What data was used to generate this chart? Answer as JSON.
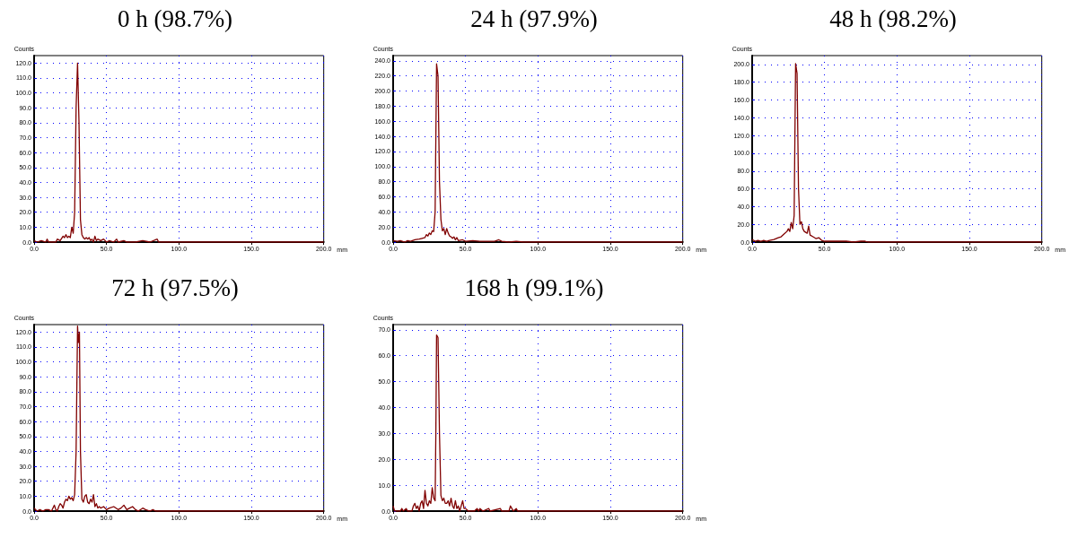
{
  "chart_data": [
    {
      "type": "line",
      "title": "0 h (98.7%)",
      "xlabel": "mm",
      "ylabel": "Counts",
      "grid": true,
      "marker": "none",
      "line_style": "solid",
      "xlim": [
        0,
        200
      ],
      "ylim": [
        0,
        125
      ],
      "xticks": [
        {
          "value": 0,
          "label": "0.0"
        },
        {
          "value": 50,
          "label": "50.0"
        },
        {
          "value": 100,
          "label": "100.0"
        },
        {
          "value": 150,
          "label": "150.0"
        },
        {
          "value": 200,
          "label": "200.0"
        }
      ],
      "yticks": [
        {
          "value": 0,
          "label": "0.0"
        },
        {
          "value": 10,
          "label": "10.0"
        },
        {
          "value": 20,
          "label": "20.0"
        },
        {
          "value": 30,
          "label": "30.0"
        },
        {
          "value": 40,
          "label": "40.0"
        },
        {
          "value": 50,
          "label": "50.0"
        },
        {
          "value": 60,
          "label": "60.0"
        },
        {
          "value": 70,
          "label": "70.0"
        },
        {
          "value": 80,
          "label": "80.0"
        },
        {
          "value": 90,
          "label": "90.0"
        },
        {
          "value": 100,
          "label": "100.0"
        },
        {
          "value": 110,
          "label": "110.0"
        },
        {
          "value": 120,
          "label": "120.0"
        }
      ],
      "series": [
        {
          "color": "#800000",
          "x": [
            0,
            2,
            5,
            8,
            9,
            10,
            15,
            16,
            18,
            20,
            21,
            22,
            23,
            24,
            25,
            26,
            27,
            28,
            29,
            30,
            31,
            32,
            33,
            34,
            35,
            36,
            37,
            38,
            39,
            40,
            41,
            42,
            43,
            44,
            46,
            48,
            50,
            52,
            55,
            57,
            58,
            62,
            64,
            70,
            75,
            80,
            85,
            86,
            90,
            200
          ],
          "values": [
            1,
            0,
            1,
            0,
            2,
            0,
            0,
            2,
            1,
            4,
            3,
            5,
            3,
            4,
            3,
            10,
            6,
            20,
            90,
            120,
            80,
            15,
            5,
            3,
            2,
            3,
            2,
            3,
            1,
            2,
            0,
            4,
            1,
            2,
            1,
            2,
            0,
            1,
            0,
            2,
            0,
            1,
            0,
            0,
            1,
            0,
            2,
            0,
            0,
            0
          ]
        }
      ]
    },
    {
      "type": "line",
      "title": "24 h (97.9%)",
      "xlabel": "mm",
      "ylabel": "Counts",
      "grid": true,
      "marker": "none",
      "line_style": "solid",
      "xlim": [
        0,
        200
      ],
      "ylim": [
        0,
        247
      ],
      "xticks": [
        {
          "value": 0,
          "label": "0.0"
        },
        {
          "value": 50,
          "label": "50.0"
        },
        {
          "value": 100,
          "label": "100.0"
        },
        {
          "value": 150,
          "label": "150.0"
        },
        {
          "value": 200,
          "label": "200.0"
        }
      ],
      "yticks": [
        {
          "value": 0,
          "label": "0.0"
        },
        {
          "value": 20,
          "label": "20.0"
        },
        {
          "value": 40,
          "label": "40.0"
        },
        {
          "value": 60,
          "label": "60.0"
        },
        {
          "value": 80,
          "label": "80.0"
        },
        {
          "value": 100,
          "label": "100.0"
        },
        {
          "value": 120,
          "label": "120.0"
        },
        {
          "value": 140,
          "label": "140.0"
        },
        {
          "value": 160,
          "label": "160.0"
        },
        {
          "value": 180,
          "label": "180.0"
        },
        {
          "value": 200,
          "label": "200.0"
        },
        {
          "value": 220,
          "label": "220.0"
        },
        {
          "value": 240,
          "label": "240.0"
        }
      ],
      "series": [
        {
          "color": "#800000",
          "x": [
            0,
            3,
            5,
            8,
            10,
            12,
            15,
            18,
            20,
            22,
            23,
            24,
            25,
            26,
            27,
            28,
            29,
            30,
            31,
            32,
            33,
            34,
            35,
            36,
            37,
            38,
            39,
            40,
            41,
            42,
            43,
            44,
            45,
            48,
            50,
            55,
            60,
            65,
            70,
            73,
            75,
            80,
            85,
            90,
            200
          ],
          "values": [
            2,
            1,
            2,
            0,
            2,
            1,
            3,
            4,
            5,
            6,
            10,
            8,
            12,
            10,
            15,
            14,
            40,
            236,
            220,
            80,
            30,
            15,
            18,
            10,
            18,
            12,
            8,
            7,
            5,
            7,
            3,
            6,
            2,
            3,
            1,
            2,
            1,
            1,
            1,
            3,
            1,
            0,
            1,
            0,
            0
          ]
        }
      ]
    },
    {
      "type": "line",
      "title": "48 h (98.2%)",
      "xlabel": "mm",
      "ylabel": "Counts",
      "grid": true,
      "marker": "none",
      "line_style": "solid",
      "xlim": [
        0,
        200
      ],
      "ylim": [
        0,
        210
      ],
      "xticks": [
        {
          "value": 0,
          "label": "0.0"
        },
        {
          "value": 50,
          "label": "50.0"
        },
        {
          "value": 100,
          "label": "100.0"
        },
        {
          "value": 150,
          "label": "150.0"
        },
        {
          "value": 200,
          "label": "200.0"
        }
      ],
      "yticks": [
        {
          "value": 0,
          "label": "0.0"
        },
        {
          "value": 20,
          "label": "20.0"
        },
        {
          "value": 40,
          "label": "40.0"
        },
        {
          "value": 60,
          "label": "60.0"
        },
        {
          "value": 80,
          "label": "80.0"
        },
        {
          "value": 100,
          "label": "100.0"
        },
        {
          "value": 120,
          "label": "120.0"
        },
        {
          "value": 140,
          "label": "140.0"
        },
        {
          "value": 160,
          "label": "160.0"
        },
        {
          "value": 180,
          "label": "180.0"
        },
        {
          "value": 200,
          "label": "200.0"
        }
      ],
      "series": [
        {
          "color": "#800000",
          "x": [
            0,
            2,
            4,
            6,
            8,
            10,
            12,
            15,
            18,
            20,
            22,
            24,
            25,
            26,
            27,
            28,
            29,
            30,
            31,
            32,
            33,
            34,
            35,
            36,
            38,
            39,
            40,
            42,
            44,
            46,
            48,
            50,
            55,
            60,
            65,
            70,
            75,
            78,
            80,
            85,
            90,
            200
          ],
          "values": [
            3,
            1,
            2,
            1,
            2,
            1,
            2,
            3,
            5,
            6,
            9,
            12,
            15,
            12,
            22,
            15,
            30,
            201,
            190,
            60,
            20,
            23,
            15,
            12,
            10,
            18,
            8,
            6,
            4,
            5,
            2,
            1,
            1,
            1,
            1,
            0,
            1,
            1,
            0,
            0,
            0,
            0
          ]
        }
      ]
    },
    {
      "type": "line",
      "title": "72 h (97.5%)",
      "xlabel": "mm",
      "ylabel": "Counts",
      "grid": true,
      "marker": "none",
      "line_style": "solid",
      "xlim": [
        0,
        200
      ],
      "ylim": [
        0,
        125
      ],
      "xticks": [
        {
          "value": 0,
          "label": "0.0"
        },
        {
          "value": 50,
          "label": "50.0"
        },
        {
          "value": 100,
          "label": "100.0"
        },
        {
          "value": 150,
          "label": "150.0"
        },
        {
          "value": 200,
          "label": "200.0"
        }
      ],
      "yticks": [
        {
          "value": 0,
          "label": "0.0"
        },
        {
          "value": 10,
          "label": "10.0"
        },
        {
          "value": 20,
          "label": "20.0"
        },
        {
          "value": 30,
          "label": "30.0"
        },
        {
          "value": 40,
          "label": "40.0"
        },
        {
          "value": 50,
          "label": "50.0"
        },
        {
          "value": 60,
          "label": "60.0"
        },
        {
          "value": 70,
          "label": "70.0"
        },
        {
          "value": 80,
          "label": "80.0"
        },
        {
          "value": 90,
          "label": "90.0"
        },
        {
          "value": 100,
          "label": "100.0"
        },
        {
          "value": 110,
          "label": "110.0"
        },
        {
          "value": 120,
          "label": "120.0"
        }
      ],
      "series": [
        {
          "color": "#800000",
          "x": [
            0,
            2,
            4,
            6,
            8,
            10,
            12,
            14,
            15,
            16,
            17,
            18,
            19,
            20,
            21,
            22,
            23,
            24,
            25,
            26,
            27,
            28,
            29,
            30,
            30.6,
            31.3,
            32,
            33,
            34,
            35,
            36,
            37,
            38,
            39,
            40,
            41,
            42,
            43,
            44,
            45,
            46,
            48,
            50,
            52,
            55,
            58,
            60,
            62,
            64,
            66,
            68,
            70,
            72,
            75,
            77,
            80,
            82,
            84,
            90,
            200
          ],
          "values": [
            2,
            0,
            1,
            0,
            1,
            1,
            0,
            4,
            1,
            0,
            3,
            5,
            4,
            2,
            6,
            8,
            7,
            10,
            8,
            9,
            7,
            11,
            40,
            124,
            113,
            120,
            40,
            8,
            6,
            10,
            11,
            6,
            5,
            8,
            6,
            11,
            3,
            5,
            2,
            3,
            2,
            3,
            1,
            2,
            3,
            1,
            2,
            4,
            1,
            2,
            3,
            1,
            0,
            2,
            1,
            0,
            1,
            0,
            0,
            0
          ]
        }
      ]
    },
    {
      "type": "line",
      "title": "168 h (99.1%)",
      "xlabel": "mm",
      "ylabel": "Counts",
      "grid": true,
      "marker": "none",
      "line_style": "solid",
      "xlim": [
        0,
        200
      ],
      "ylim": [
        0,
        72
      ],
      "xticks": [
        {
          "value": 0,
          "label": "0.0"
        },
        {
          "value": 50,
          "label": "50.0"
        },
        {
          "value": 100,
          "label": "100.0"
        },
        {
          "value": 150,
          "label": "150.0"
        },
        {
          "value": 200,
          "label": "200.0"
        }
      ],
      "yticks": [
        {
          "value": 0,
          "label": "0.0"
        },
        {
          "value": 10,
          "label": "10.0"
        },
        {
          "value": 20,
          "label": "20.0"
        },
        {
          "value": 30,
          "label": "30.0"
        },
        {
          "value": 40,
          "label": "40.0"
        },
        {
          "value": 50,
          "label": "50.0"
        },
        {
          "value": 60,
          "label": "60.0"
        },
        {
          "value": 70,
          "label": "70.0"
        }
      ],
      "series": [
        {
          "color": "#800000",
          "x": [
            0,
            1,
            5,
            6,
            7,
            9,
            10,
            13,
            14,
            15,
            16,
            17,
            18,
            19,
            20,
            21,
            22,
            23,
            24,
            25,
            26,
            27,
            28,
            29,
            29.5,
            30,
            31,
            32,
            33,
            34,
            35,
            36,
            37,
            38,
            39,
            40,
            41,
            42,
            43,
            44,
            45,
            46,
            48,
            49,
            50,
            52,
            56,
            58,
            59,
            60,
            62,
            66,
            67,
            74,
            75,
            80,
            81,
            82,
            83,
            85,
            86,
            90,
            200
          ],
          "values": [
            2,
            0,
            0,
            1,
            0,
            1,
            0,
            0,
            2,
            3,
            1,
            2,
            0,
            3,
            4,
            1,
            8,
            3,
            2,
            4,
            3,
            9,
            5,
            4,
            30,
            68,
            67,
            30,
            6,
            4,
            5,
            3,
            3,
            4,
            2,
            5,
            2,
            1,
            4,
            1,
            2,
            0,
            4,
            1,
            1,
            0,
            0,
            1,
            0,
            1,
            0,
            1,
            0,
            1,
            0,
            0,
            2,
            1,
            0,
            1,
            0,
            0,
            0
          ]
        }
      ]
    }
  ]
}
